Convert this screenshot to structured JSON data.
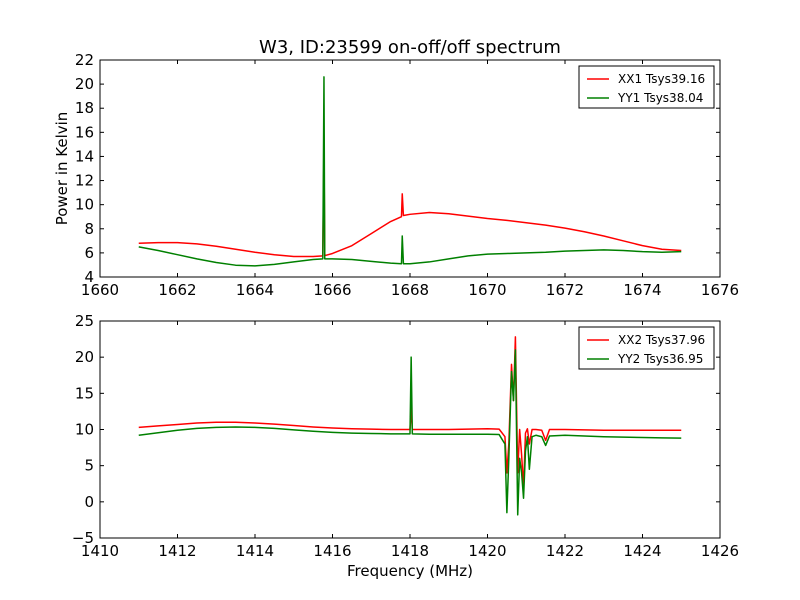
{
  "chart_data": [
    {
      "type": "line",
      "title": "W3, ID:23599 on-off/off spectrum",
      "xlabel": "",
      "ylabel": "Power in Kelvin",
      "xlim": [
        1660,
        1676
      ],
      "ylim": [
        4,
        22
      ],
      "xticks": [
        1660,
        1662,
        1664,
        1666,
        1668,
        1670,
        1672,
        1674,
        1676
      ],
      "yticks": [
        4,
        6,
        8,
        10,
        12,
        14,
        16,
        18,
        20,
        22
      ],
      "grid": false,
      "legend": "top-right",
      "series": [
        {
          "name": "XX1 Tsys39.16",
          "color": "#ff0000",
          "x": [
            1661.0,
            1661.5,
            1662.0,
            1662.5,
            1663.0,
            1663.5,
            1664.0,
            1664.5,
            1665.0,
            1665.5,
            1665.75,
            1665.78,
            1665.8,
            1665.83,
            1666.0,
            1666.5,
            1667.0,
            1667.5,
            1667.78,
            1667.8,
            1667.83,
            1668.0,
            1668.5,
            1669.0,
            1669.5,
            1670.0,
            1670.5,
            1671.0,
            1671.5,
            1672.0,
            1672.5,
            1673.0,
            1673.5,
            1674.0,
            1674.5,
            1675.0
          ],
          "values": [
            6.8,
            6.85,
            6.85,
            6.75,
            6.55,
            6.3,
            6.05,
            5.85,
            5.7,
            5.7,
            5.75,
            14.7,
            5.8,
            5.8,
            5.95,
            6.6,
            7.6,
            8.6,
            9.0,
            10.9,
            9.1,
            9.2,
            9.35,
            9.25,
            9.05,
            8.85,
            8.7,
            8.5,
            8.3,
            8.05,
            7.75,
            7.4,
            7.0,
            6.6,
            6.3,
            6.2
          ]
        },
        {
          "name": "YY1 Tsys38.04",
          "color": "#008000",
          "x": [
            1661.0,
            1661.5,
            1662.0,
            1662.5,
            1663.0,
            1663.5,
            1664.0,
            1664.5,
            1665.0,
            1665.5,
            1665.75,
            1665.78,
            1665.8,
            1665.83,
            1666.0,
            1666.5,
            1667.0,
            1667.5,
            1667.78,
            1667.8,
            1667.83,
            1668.0,
            1668.5,
            1669.0,
            1669.5,
            1670.0,
            1670.5,
            1671.0,
            1671.5,
            1672.0,
            1672.5,
            1673.0,
            1673.5,
            1674.0,
            1674.5,
            1675.0
          ],
          "values": [
            6.5,
            6.2,
            5.85,
            5.5,
            5.2,
            4.98,
            4.92,
            5.05,
            5.25,
            5.45,
            5.5,
            20.6,
            5.5,
            5.5,
            5.5,
            5.45,
            5.3,
            5.15,
            5.1,
            7.4,
            5.1,
            5.1,
            5.25,
            5.5,
            5.75,
            5.9,
            5.95,
            6.0,
            6.05,
            6.15,
            6.2,
            6.25,
            6.2,
            6.1,
            6.05,
            6.1
          ]
        }
      ]
    },
    {
      "type": "line",
      "title": "",
      "xlabel": "Frequency (MHz)",
      "ylabel": "",
      "xlim": [
        1410,
        1426
      ],
      "ylim": [
        -5,
        25
      ],
      "xticks": [
        1410,
        1412,
        1414,
        1416,
        1418,
        1420,
        1422,
        1424,
        1426
      ],
      "yticks": [
        -5,
        0,
        5,
        10,
        15,
        20,
        25
      ],
      "grid": false,
      "legend": "top-right",
      "series": [
        {
          "name": "XX2 Tsys37.96",
          "color": "#ff0000",
          "x": [
            1411.0,
            1411.5,
            1412.0,
            1412.5,
            1413.0,
            1413.5,
            1414.0,
            1414.5,
            1415.0,
            1415.5,
            1416.0,
            1416.5,
            1417.0,
            1417.5,
            1418.0,
            1418.03,
            1418.06,
            1418.5,
            1419.0,
            1419.5,
            1420.0,
            1420.3,
            1420.45,
            1420.5,
            1420.55,
            1420.62,
            1420.67,
            1420.72,
            1420.78,
            1420.83,
            1420.88,
            1420.93,
            1420.98,
            1421.03,
            1421.08,
            1421.15,
            1421.25,
            1421.4,
            1421.5,
            1421.6,
            1422.0,
            1422.5,
            1423.0,
            1423.5,
            1424.0,
            1424.5,
            1425.0
          ],
          "values": [
            10.3,
            10.5,
            10.7,
            10.9,
            11.0,
            11.0,
            10.9,
            10.75,
            10.55,
            10.35,
            10.2,
            10.1,
            10.05,
            10.0,
            10.0,
            13.0,
            10.0,
            10.0,
            10.0,
            10.05,
            10.1,
            10.05,
            9.0,
            4.0,
            8.0,
            19.0,
            14.0,
            22.8,
            4.0,
            10.0,
            6.5,
            2.0,
            9.5,
            10.1,
            8.0,
            10.0,
            10.0,
            9.9,
            8.5,
            10.0,
            10.0,
            9.95,
            9.9,
            9.9,
            9.9,
            9.9,
            9.9
          ]
        },
        {
          "name": "YY2 Tsys36.95",
          "color": "#008000",
          "x": [
            1411.0,
            1411.5,
            1412.0,
            1412.5,
            1413.0,
            1413.5,
            1414.0,
            1414.5,
            1415.0,
            1415.5,
            1416.0,
            1416.5,
            1417.0,
            1417.5,
            1418.0,
            1418.03,
            1418.06,
            1418.5,
            1419.0,
            1419.5,
            1420.0,
            1420.3,
            1420.45,
            1420.5,
            1420.55,
            1420.62,
            1420.67,
            1420.72,
            1420.78,
            1420.83,
            1420.88,
            1420.93,
            1420.98,
            1421.03,
            1421.08,
            1421.15,
            1421.25,
            1421.4,
            1421.5,
            1421.6,
            1422.0,
            1422.5,
            1423.0,
            1423.5,
            1424.0,
            1424.5,
            1425.0
          ],
          "values": [
            9.2,
            9.55,
            9.9,
            10.15,
            10.3,
            10.35,
            10.3,
            10.15,
            9.95,
            9.75,
            9.6,
            9.5,
            9.45,
            9.4,
            9.4,
            20.0,
            9.4,
            9.35,
            9.35,
            9.35,
            9.35,
            9.3,
            8.0,
            -1.5,
            6.0,
            18.0,
            14.0,
            21.0,
            -1.8,
            6.0,
            4.0,
            0.5,
            7.0,
            9.0,
            4.5,
            9.0,
            9.2,
            9.0,
            7.8,
            9.1,
            9.2,
            9.1,
            9.0,
            8.95,
            8.9,
            8.85,
            8.8
          ]
        }
      ]
    }
  ]
}
